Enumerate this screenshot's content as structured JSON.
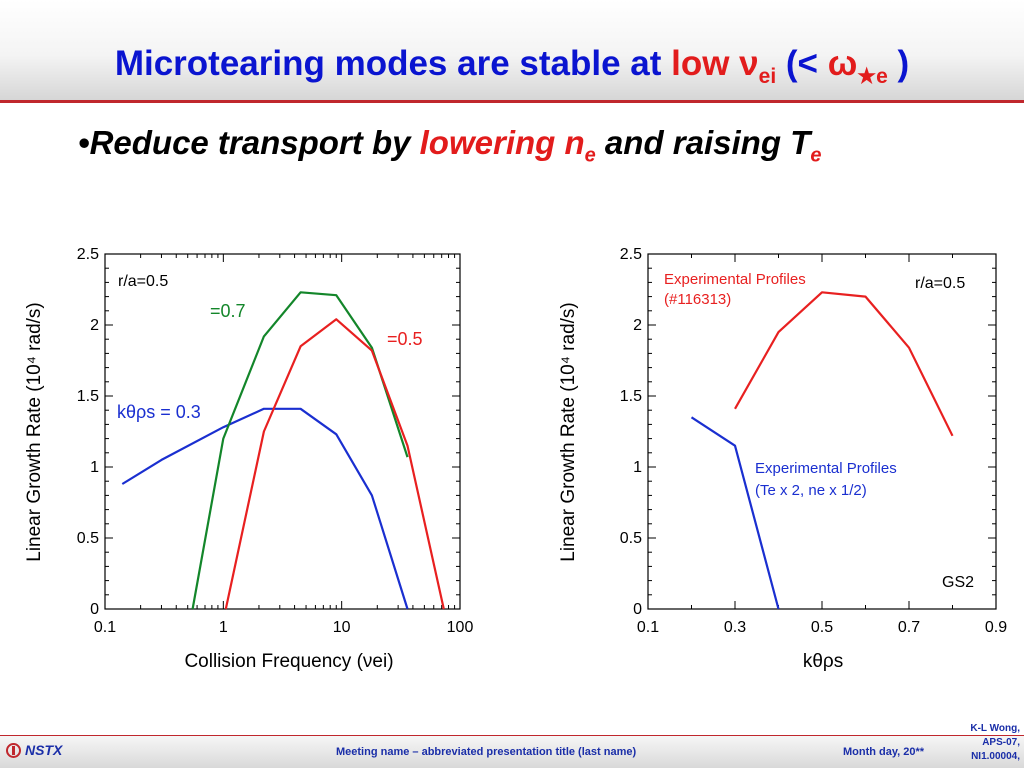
{
  "slide": {
    "title": {
      "main": "Microtearing modes are stable at ",
      "low": "low ",
      "nu": "ν",
      "nu_sub": "ei",
      "paren_open": " (< ",
      "omega": "ω",
      "star_sub": "★e",
      "paren_close": " )"
    },
    "bullet": {
      "dot": "•",
      "part1": "Reduce transport by ",
      "part2": "lowering n",
      "n_sub": "e",
      "part3": " and raising T",
      "t_sub": "e"
    },
    "colors": {
      "title_blue": "#0a14d0",
      "emphasis_red": "#e21c1c",
      "series_blue": "#1a2fd0",
      "series_red": "#e82020",
      "series_green": "#13862a"
    }
  },
  "chart_data": [
    {
      "type": "line",
      "xscale": "log",
      "xlabel": "Collision Frequency (νei)",
      "ylabel": "Linear Growth Rate (10⁴ rad/s)",
      "xlim": [
        0.1,
        100
      ],
      "ylim": [
        0,
        2.5
      ],
      "xticks": [
        0.1,
        1,
        10,
        100
      ],
      "xtick_labels": [
        "0.1",
        "1",
        "10",
        "100"
      ],
      "yticks": [
        0,
        0.5,
        1,
        1.5,
        2,
        2.5
      ],
      "ytick_labels": [
        "0",
        "0.5",
        "1",
        "1.5",
        "2",
        "2.5"
      ],
      "grid": false,
      "annotations": [
        "r/a=0.5"
      ],
      "series": [
        {
          "name": "kθρs = 0.3",
          "color": "#1a2fd0",
          "x": [
            0.14,
            0.3,
            1.0,
            2.2,
            4.5,
            9,
            18,
            36
          ],
          "y": [
            0.88,
            1.05,
            1.28,
            1.41,
            1.41,
            1.23,
            0.8,
            0
          ]
        },
        {
          "name": "=0.7",
          "color": "#13862a",
          "x": [
            0.55,
            1.0,
            2.2,
            4.5,
            9,
            18,
            36
          ],
          "y": [
            0,
            1.2,
            1.92,
            2.23,
            2.21,
            1.84,
            1.07
          ]
        },
        {
          "name": "=0.5",
          "color": "#e82020",
          "x": [
            1.05,
            2.2,
            4.5,
            9,
            18,
            36,
            73
          ],
          "y": [
            0,
            1.25,
            1.85,
            2.04,
            1.82,
            1.15,
            0
          ]
        }
      ]
    },
    {
      "type": "line",
      "xlabel": "kθρs",
      "ylabel": "Linear Growth Rate (10⁴ rad/s)",
      "xlim": [
        0.1,
        0.9
      ],
      "ylim": [
        0,
        2.5
      ],
      "xticks": [
        0.1,
        0.3,
        0.5,
        0.7,
        0.9
      ],
      "xtick_labels": [
        "0.1",
        "0.3",
        "0.5",
        "0.7",
        "0.9"
      ],
      "yticks": [
        0,
        0.5,
        1,
        1.5,
        2,
        2.5
      ],
      "ytick_labels": [
        "0",
        "0.5",
        "1",
        "1.5",
        "2",
        "2.5"
      ],
      "grid": false,
      "annotations": [
        "r/a=0.5",
        "GS2"
      ],
      "series": [
        {
          "name": "Experimental Profiles (#116313)",
          "color": "#e82020",
          "x": [
            0.3,
            0.4,
            0.5,
            0.6,
            0.7,
            0.8
          ],
          "y": [
            1.41,
            1.95,
            2.23,
            2.2,
            1.84,
            1.22
          ]
        },
        {
          "name": "Experimental Profiles (Te x 2, ne x 1/2)",
          "color": "#1a2fd0",
          "x": [
            0.2,
            0.3,
            0.4
          ],
          "y": [
            1.35,
            1.15,
            0
          ]
        }
      ]
    }
  ],
  "chart_text": {
    "left": {
      "annotation": "r/a=0.5",
      "legend_green": "=0.7",
      "legend_red": "=0.5",
      "legend_blue": "kθρs = 0.3",
      "xlabel": "Collision Frequency (νei)",
      "ylabel": "Linear Growth Rate (10⁴ rad/s)"
    },
    "right": {
      "annotation": "r/a=0.5",
      "code": "GS2",
      "red_label_1": "Experimental Profiles",
      "red_label_2": "(#116313)",
      "blue_label_1": "Experimental Profiles",
      "blue_label_2": "(Te x 2, ne x 1/2)",
      "xlabel": "kθρs",
      "ylabel": "Linear Growth Rate (10⁴ rad/s)"
    }
  },
  "footer": {
    "logo_text": "NSTX",
    "center_text": "Meeting name  – abbreviated presentation title (last name)",
    "date_text": "Month day, 20**",
    "author_line1": "K-L Wong,",
    "author_line2": "APS-07,",
    "author_line3": "NI1.00004,"
  }
}
